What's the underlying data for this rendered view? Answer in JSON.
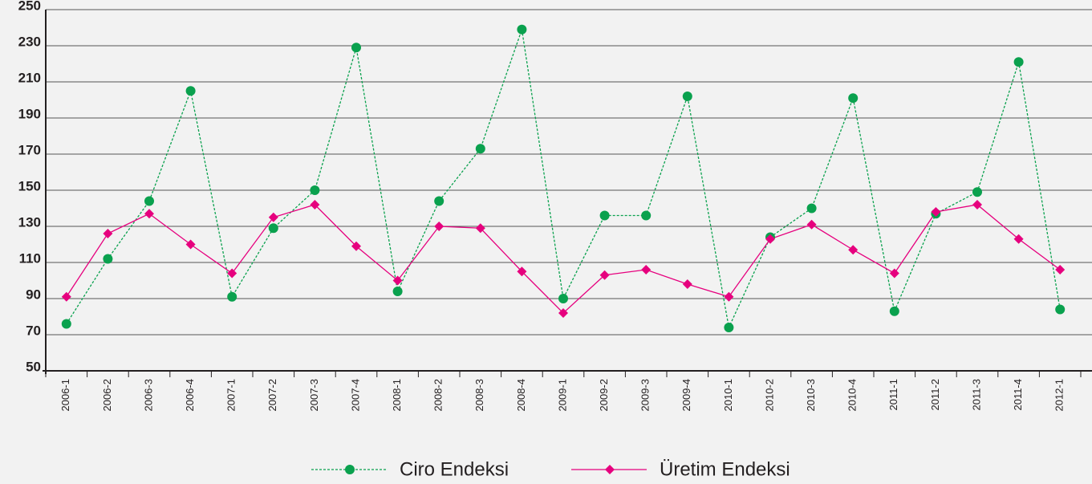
{
  "chart_data": {
    "type": "line",
    "categories": [
      "2006-1",
      "2006-2",
      "2006-3",
      "2006-4",
      "2007-1",
      "2007-2",
      "2007-3",
      "2007-4",
      "2008-1",
      "2008-2",
      "2008-3",
      "2008-4",
      "2009-1",
      "2009-2",
      "2009-3",
      "2009-4",
      "2010-1",
      "2010-2",
      "2010-3",
      "2010-4",
      "2011-1",
      "2011-2",
      "2011-3",
      "2011-4",
      "2012-1"
    ],
    "series": [
      {
        "name": "Ciro Endeksi",
        "color": "#0aa14e",
        "style": "dotted",
        "marker": "circle",
        "values": [
          76,
          112,
          144,
          205,
          91,
          129,
          150,
          229,
          94,
          144,
          173,
          239,
          90,
          136,
          136,
          202,
          74,
          124,
          140,
          201,
          83,
          137,
          149,
          221,
          84
        ]
      },
      {
        "name": "Üretim Endeksi",
        "color": "#e6007e",
        "style": "solid",
        "marker": "diamond",
        "values": [
          91,
          126,
          137,
          120,
          104,
          135,
          142,
          119,
          100,
          130,
          129,
          105,
          82,
          103,
          106,
          98,
          91,
          123,
          131,
          117,
          104,
          138,
          142,
          123,
          106
        ]
      }
    ],
    "ylim": [
      50,
      250
    ],
    "yticks": [
      50,
      70,
      90,
      110,
      130,
      150,
      170,
      190,
      210,
      230,
      250
    ],
    "grid": true,
    "legend": "bottom"
  }
}
